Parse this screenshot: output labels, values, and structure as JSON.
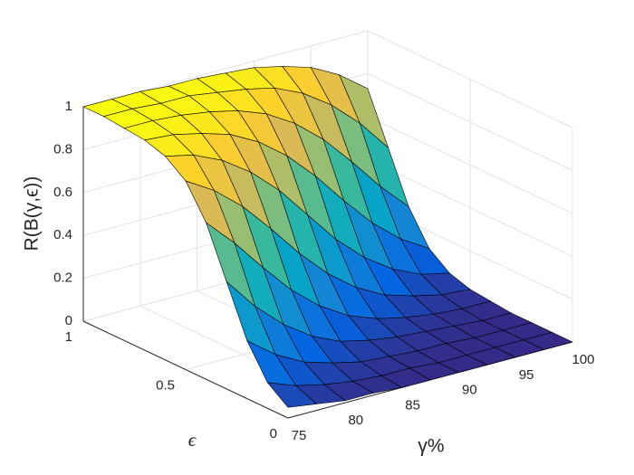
{
  "chart_data": {
    "type": "surface",
    "colormap": "parula",
    "grid": true,
    "xlabel": "γ%",
    "ylabel": "ϵ",
    "zlabel": "R(B(γ,ϵ))",
    "x": [
      75,
      77.5,
      80,
      82.5,
      85,
      87.5,
      90,
      92.5,
      95,
      97.5,
      100
    ],
    "y": [
      0,
      0.1,
      0.2,
      0.3,
      0.4,
      0.5,
      0.6,
      0.7,
      0.8,
      0.9,
      1
    ],
    "z": [
      [
        0.05,
        0.03,
        0.01,
        0.01,
        0,
        0,
        0,
        0,
        0,
        0,
        0
      ],
      [
        0.12,
        0.07,
        0.04,
        0.02,
        0.01,
        0.01,
        0,
        0,
        0,
        0,
        0
      ],
      [
        0.27,
        0.17,
        0.1,
        0.06,
        0.03,
        0.02,
        0.01,
        0.01,
        0,
        0,
        0
      ],
      [
        0.5,
        0.35,
        0.23,
        0.14,
        0.08,
        0.05,
        0.03,
        0.02,
        0.01,
        0,
        0
      ],
      [
        0.73,
        0.6,
        0.45,
        0.31,
        0.2,
        0.12,
        0.07,
        0.04,
        0.02,
        0.01,
        0.01
      ],
      [
        0.88,
        0.8,
        0.69,
        0.55,
        0.4,
        0.27,
        0.17,
        0.1,
        0.06,
        0.03,
        0.02
      ],
      [
        0.95,
        0.92,
        0.86,
        0.77,
        0.65,
        0.5,
        0.35,
        0.23,
        0.14,
        0.08,
        0.05
      ],
      [
        0.98,
        0.97,
        0.94,
        0.9,
        0.83,
        0.73,
        0.6,
        0.45,
        0.31,
        0.2,
        0.12
      ],
      [
        0.99,
        0.99,
        0.98,
        0.96,
        0.93,
        0.88,
        0.8,
        0.69,
        0.55,
        0.4,
        0.27
      ],
      [
        1,
        1,
        0.99,
        0.99,
        0.97,
        0.95,
        0.92,
        0.86,
        0.77,
        0.65,
        0.5
      ],
      [
        1,
        1,
        1,
        0.99,
        0.99,
        0.98,
        0.97,
        0.94,
        0.9,
        0.83,
        0.73
      ]
    ],
    "xlim": [
      75,
      100
    ],
    "ylim": [
      0,
      1
    ],
    "zlim": [
      0,
      1
    ],
    "xticks": [
      75,
      80,
      85,
      90,
      95,
      100
    ],
    "yticks": [
      0,
      0.5,
      1
    ],
    "zticks": [
      0,
      0.2,
      0.4,
      0.6,
      0.8,
      1
    ]
  }
}
